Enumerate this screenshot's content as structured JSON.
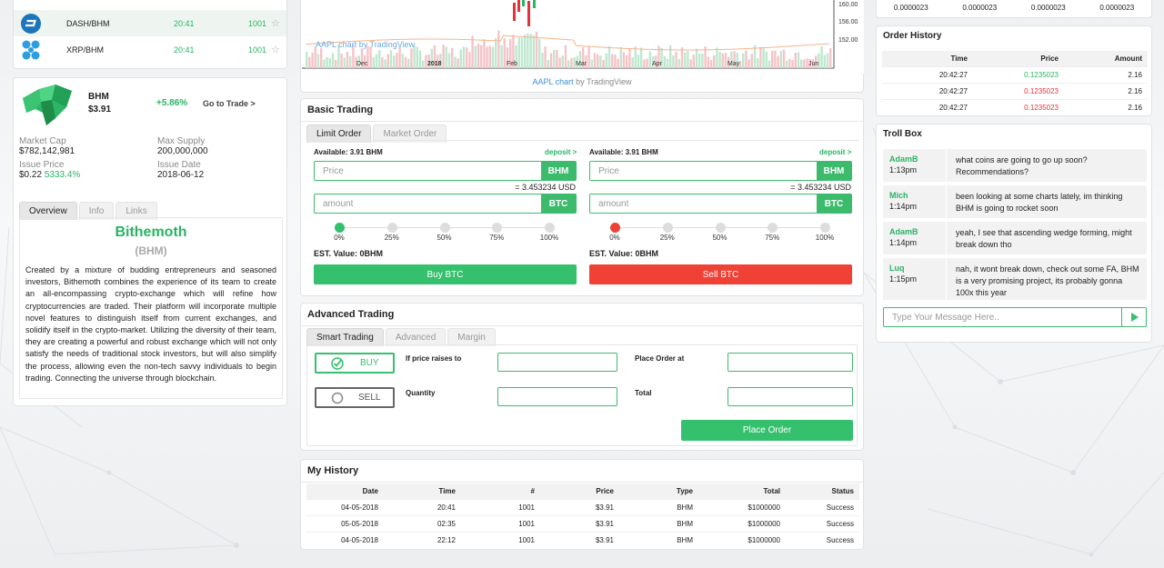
{
  "coin_list": [
    {
      "name": "DASH/BHM",
      "time": "20:41",
      "value": "1001",
      "icon": "dash-icon"
    },
    {
      "name": "XRP/BHM",
      "time": "20:41",
      "value": "1001",
      "icon": "xrp-icon"
    }
  ],
  "coin_info": {
    "symbol": "BHM",
    "price": "$3.91",
    "change": "+5.86%",
    "go_to_trade": "Go to Trade >",
    "market_cap_label": "Market Cap",
    "market_cap": "$782,142,981",
    "max_supply_label": "Max Supply",
    "max_supply": "200,000,000",
    "issue_price_label": "Issue Price",
    "issue_price": "$0.22",
    "issue_price_change": "5333.4%",
    "issue_date_label": "Issue Date",
    "issue_date": "2018-06-12",
    "tabs": [
      "Overview",
      "Info",
      "Links"
    ],
    "name": "Bithemoth",
    "ticker": "(BHM)",
    "description": "Created by a mixture of budding entrepreneurs and seasoned investors, Bithemoth combines the experience of its team to create an all-encompassing crypto-exchange which will refine how cryptocurrencies are traded. Their platform will incorporate multiple novel features to distinguish itself from current exchanges, and solidify itself in the crypto-market. Utilizing the diversity of their team, they are creating a powerful and robust exchange which will not only satisfy the needs of traditional stock investors, but will also simplify the process, allowing even the non-tech savvy individuals to begin trading. Connecting the universe through blockchain."
  },
  "chart": {
    "watermark": "AAPL chart by TradingView",
    "footer_prefix": "AAPL chart",
    "footer_suffix": " by TradingView",
    "x_labels": [
      "Dec",
      "2018",
      "Feb",
      "Mar",
      "Apr",
      "May",
      "Jun"
    ],
    "y_labels": [
      "160.00",
      "156.00",
      "152.00"
    ]
  },
  "basic_trading": {
    "title": "Basic Trading",
    "tabs": [
      "Limit Order",
      "Market Order"
    ],
    "buy": {
      "available": "Available: 3.91 BHM",
      "deposit": "deposit >",
      "price_placeholder": "Price",
      "price_unit": "BHM",
      "conversion": "= 3.453234 USD",
      "amount_placeholder": "amount",
      "amount_unit": "BTC",
      "est": "EST. Value: 0BHM",
      "button": "Buy BTC"
    },
    "sell": {
      "available": "Available: 3.91 BHM",
      "deposit": "deposit >",
      "price_placeholder": "Price",
      "price_unit": "BHM",
      "conversion": "= 3.453234 USD",
      "amount_placeholder": "amount",
      "amount_unit": "BTC",
      "est": "EST. Value: 0BHM",
      "button": "Sell BTC"
    },
    "slider_labels": [
      "0%",
      "25%",
      "50%",
      "75%",
      "100%"
    ],
    "buy_slider_fraction": 0,
    "sell_slider_fraction": 0
  },
  "advanced_trading": {
    "title": "Advanced Trading",
    "tabs": [
      "Smart Trading",
      "Advanced",
      "Margin"
    ],
    "buy": "BUY",
    "sell": "SELL",
    "if_price_label": "If price raises to",
    "place_order_at_label": "Place Order at",
    "quantity_label": "Quantity",
    "total_label": "Total",
    "place_order_button": "Place Order"
  },
  "my_history": {
    "title": "My History",
    "columns": [
      "Date",
      "Time",
      "#",
      "Price",
      "Type",
      "Total",
      "Status"
    ],
    "rows": [
      [
        "04-05-2018",
        "20:41",
        "1001",
        "$3.91",
        "BHM",
        "$1000000",
        "Success"
      ],
      [
        "05-05-2018",
        "02:35",
        "1001",
        "$3.91",
        "BHM",
        "$1000000",
        "Success"
      ],
      [
        "04-05-2018",
        "22:12",
        "1001",
        "$3.91",
        "BHM",
        "$1000000",
        "Success"
      ]
    ]
  },
  "top_right_row": [
    "0.0000023",
    "0.0000023",
    "0.0000023",
    "0.0000023"
  ],
  "order_history": {
    "title": "Order History",
    "columns": [
      "Time",
      "Price",
      "Amount"
    ],
    "rows": [
      {
        "time": "20:42:27",
        "price": "0.1235023",
        "amount": "2.16",
        "side": "buy"
      },
      {
        "time": "20:42:27",
        "price": "0.1235023",
        "amount": "2.16",
        "side": "sell"
      },
      {
        "time": "20:42:27",
        "price": "0.1235023",
        "amount": "2.16",
        "side": "sell"
      }
    ]
  },
  "troll_box": {
    "title": "Troll Box",
    "messages": [
      {
        "user": "AdamB",
        "time": "1:13pm",
        "text": "what coins are going to go up soon? Recommendations?"
      },
      {
        "user": "Mich",
        "time": "1:14pm",
        "text": "been looking at some charts lately, im thinking BHM is going to rocket soon"
      },
      {
        "user": "AdamB",
        "time": "1:14pm",
        "text": "yeah, I see that ascending wedge forming, might break down tho"
      },
      {
        "user": "Luq",
        "time": "1:15pm",
        "text": "nah, it wont break down, check out some FA, BHM is a very promising project, its probably gonna 100x this year"
      }
    ],
    "input_placeholder": "Type Your Message Here.."
  },
  "colors": {
    "green": "#28b463",
    "red": "#e5313a",
    "accent": "#3dbb6d"
  }
}
